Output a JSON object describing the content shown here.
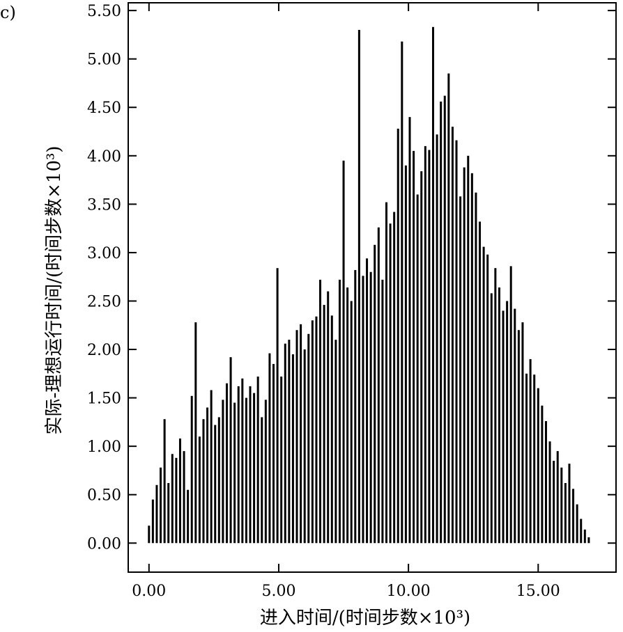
{
  "panel_label": "c)",
  "chart_data": {
    "type": "bar",
    "xlabel": "进入时间/(时间步数×10³)",
    "ylabel": "实际-理想运行时间/(时间步数×10³)",
    "xlim": [
      -0.8,
      18.0
    ],
    "ylim": [
      -0.3,
      5.58
    ],
    "x_ticks": [
      0,
      5,
      10,
      15
    ],
    "x_tick_labels": [
      "0.00",
      "5.00",
      "10.00",
      "15.00"
    ],
    "y_ticks": [
      0,
      0.5,
      1,
      1.5,
      2,
      2.5,
      3,
      3.5,
      4,
      4.5,
      5,
      5.5
    ],
    "y_tick_labels": [
      "0.00",
      "0.50",
      "1.00",
      "1.50",
      "2.00",
      "2.50",
      "3.00",
      "3.50",
      "4.00",
      "4.50",
      "5.00",
      "5.50"
    ],
    "grid": false,
    "bar_color": "#000000",
    "bar_width": 0.05,
    "series": [
      {
        "x": [
          0.0,
          0.15,
          0.3,
          0.45,
          0.6,
          0.75,
          0.9,
          1.05,
          1.2,
          1.35,
          1.5,
          1.65,
          1.8,
          1.95,
          2.1,
          2.25,
          2.4,
          2.55,
          2.7,
          2.85,
          3.0,
          3.15,
          3.3,
          3.45,
          3.6,
          3.75,
          3.9,
          4.05,
          4.2,
          4.35,
          4.5,
          4.65,
          4.8,
          4.95,
          5.1,
          5.25,
          5.4,
          5.55,
          5.7,
          5.85,
          6.0,
          6.15,
          6.3,
          6.45,
          6.6,
          6.75,
          6.9,
          7.05,
          7.2,
          7.35,
          7.5,
          7.65,
          7.8,
          7.95,
          8.1,
          8.25,
          8.4,
          8.55,
          8.7,
          8.85,
          9.0,
          9.15,
          9.3,
          9.45,
          9.6,
          9.75,
          9.9,
          10.05,
          10.2,
          10.35,
          10.5,
          10.65,
          10.8,
          10.95,
          11.1,
          11.25,
          11.4,
          11.55,
          11.7,
          11.85,
          12.0,
          12.15,
          12.3,
          12.45,
          12.6,
          12.75,
          12.9,
          13.05,
          13.2,
          13.35,
          13.5,
          13.65,
          13.8,
          13.95,
          14.1,
          14.25,
          14.4,
          14.55,
          14.7,
          14.85,
          15.0,
          15.15,
          15.3,
          15.45,
          15.6,
          15.75,
          15.9,
          16.05,
          16.2,
          16.35,
          16.5,
          16.65,
          16.8,
          16.95
        ],
        "y": [
          0.18,
          0.45,
          0.6,
          0.78,
          1.28,
          0.62,
          0.92,
          0.88,
          1.08,
          0.95,
          0.55,
          1.52,
          2.28,
          1.1,
          1.28,
          1.4,
          1.58,
          1.22,
          1.3,
          1.48,
          1.65,
          1.92,
          1.45,
          1.62,
          1.7,
          1.5,
          1.62,
          1.55,
          1.72,
          1.3,
          1.48,
          1.96,
          1.85,
          2.84,
          1.72,
          2.06,
          2.1,
          1.95,
          2.2,
          2.26,
          2.0,
          2.16,
          2.3,
          2.34,
          2.72,
          2.46,
          2.6,
          2.35,
          2.1,
          2.72,
          3.95,
          2.64,
          2.5,
          2.82,
          5.3,
          2.76,
          2.94,
          2.8,
          3.08,
          3.26,
          2.72,
          3.52,
          3.3,
          3.42,
          4.28,
          5.18,
          3.9,
          4.4,
          4.05,
          3.6,
          3.84,
          4.1,
          4.06,
          5.33,
          4.22,
          4.56,
          4.62,
          4.85,
          4.3,
          4.16,
          3.58,
          3.88,
          4.0,
          3.82,
          3.62,
          3.32,
          3.06,
          2.98,
          2.58,
          2.84,
          2.64,
          2.4,
          2.5,
          2.86,
          2.42,
          2.2,
          2.28,
          1.75,
          1.9,
          1.74,
          1.6,
          1.42,
          1.26,
          1.05,
          0.85,
          0.95,
          0.78,
          0.62,
          0.82,
          0.56,
          0.4,
          0.25,
          0.14,
          0.06
        ]
      }
    ]
  }
}
